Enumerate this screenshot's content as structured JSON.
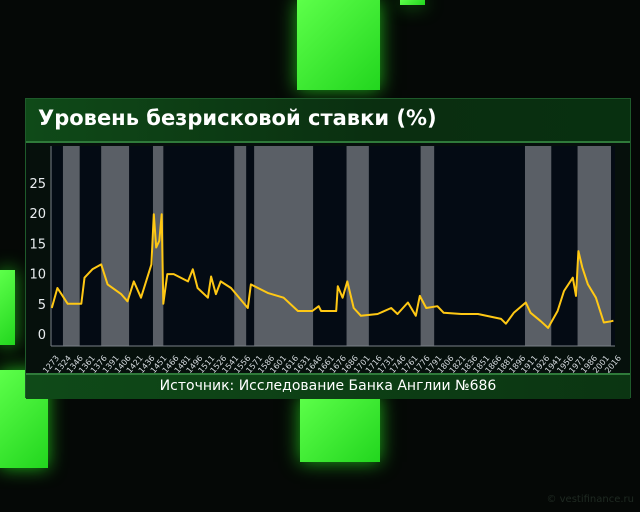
{
  "title": "Уровень безрисковой ставки (%)",
  "source": "Источник: Исследование Банка Англии №686",
  "watermark": "© vestifinance.ru",
  "chart_data": {
    "type": "line",
    "title": "Уровень безрисковой ставки (%)",
    "xlabel": "",
    "ylabel": "",
    "ylim": [
      0,
      30
    ],
    "yticks": [
      0,
      5,
      10,
      15,
      20,
      25
    ],
    "xlim": [
      1310,
      2018
    ],
    "xtick_labels": [
      "1273",
      "1324",
      "1346",
      "1361",
      "1376",
      "1391",
      "1406",
      "1421",
      "1436",
      "1451",
      "1466",
      "1481",
      "1496",
      "1511",
      "1526",
      "1541",
      "1556",
      "1571",
      "1586",
      "1601",
      "1616",
      "1631",
      "1646",
      "1661",
      "1676",
      "1686",
      "1701",
      "1716",
      "1731",
      "1746",
      "1761",
      "1776",
      "1791",
      "1806",
      "1821",
      "1836",
      "1851",
      "1866",
      "1881",
      "1896",
      "1911",
      "1926",
      "1941",
      "1956",
      "1971",
      "1986",
      "2001",
      "2016"
    ],
    "line_color": "#ffc814",
    "shaded_band_color": "#5a5f66",
    "shaded_bands": [
      [
        1325,
        1346
      ],
      [
        1373,
        1408
      ],
      [
        1438,
        1451
      ],
      [
        1540,
        1555
      ],
      [
        1565,
        1639
      ],
      [
        1681,
        1709
      ],
      [
        1774,
        1791
      ],
      [
        1905,
        1938
      ],
      [
        1971,
        2013
      ]
    ],
    "series": [
      {
        "x": [
          1311,
          1318,
          1323,
          1331,
          1348,
          1352,
          1362,
          1373,
          1381,
          1398,
          1406,
          1414,
          1423,
          1436,
          1439,
          1442,
          1446,
          1449,
          1451,
          1456,
          1464,
          1482,
          1488,
          1494,
          1507,
          1511,
          1517,
          1523,
          1536,
          1557,
          1561,
          1582,
          1602,
          1620,
          1638,
          1646,
          1649,
          1668,
          1670,
          1676,
          1682,
          1690,
          1699,
          1720,
          1737,
          1745,
          1758,
          1768,
          1773,
          1781,
          1795,
          1803,
          1825,
          1846,
          1875,
          1881,
          1891,
          1906,
          1912,
          1925,
          1934,
          1946,
          1954,
          1965,
          1969,
          1972,
          1977,
          1984,
          1994,
          2004,
          2013,
          2016
        ],
        "y": [
          4.3,
          7.6,
          6.6,
          5,
          5,
          9.3,
          10.7,
          11.5,
          8.2,
          6.6,
          5.4,
          8.7,
          6,
          11.5,
          19.8,
          14.3,
          15.4,
          19.8,
          5,
          9.9,
          9.9,
          8.7,
          10.7,
          7.6,
          6,
          9.5,
          6.6,
          8.7,
          7.6,
          4.3,
          8.2,
          6.8,
          6,
          3.8,
          3.8,
          4.6,
          3.8,
          3.8,
          7.9,
          6,
          8.7,
          4.3,
          3,
          3.3,
          4.3,
          3.3,
          5.2,
          3,
          6.3,
          4.3,
          4.6,
          3.5,
          3.3,
          3.3,
          2.5,
          1.7,
          3.5,
          5.2,
          3.5,
          2.1,
          1,
          3.8,
          7.1,
          9.3,
          6.3,
          13.7,
          11,
          8.2,
          6,
          1.9,
          2.1,
          2.2
        ]
      }
    ],
    "grid": false,
    "legend": "none"
  }
}
